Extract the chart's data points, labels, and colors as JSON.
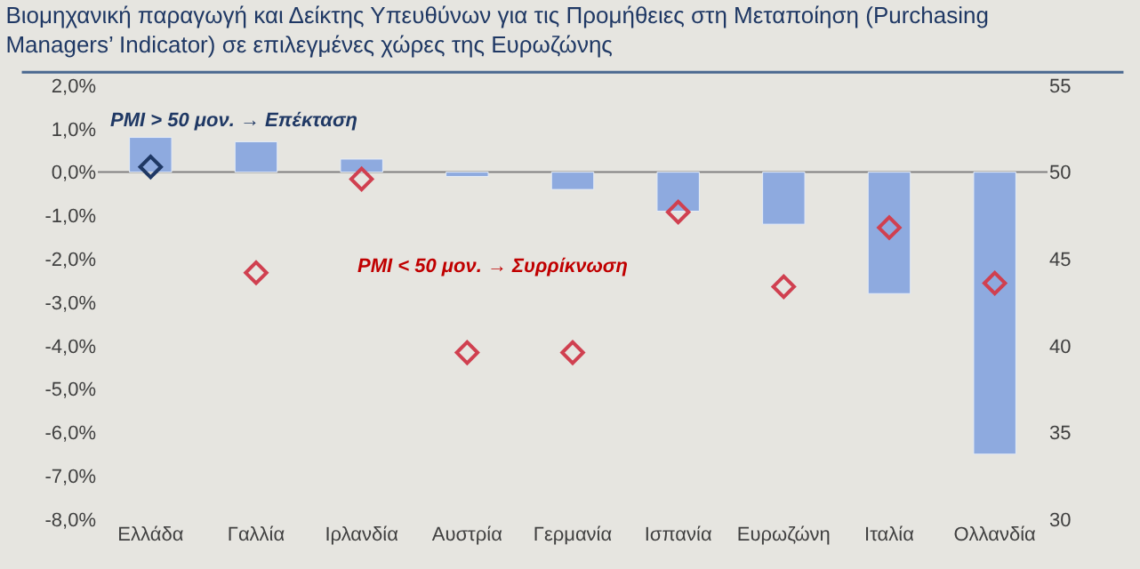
{
  "chart_data": {
    "type": "bar",
    "title": "Βιομηχανική παραγωγή και Δείκτης Υπευθύνων για τις Προμήθειες στη Μεταποίηση (Purchasing Managers’ Indicator) σε επιλεγμένες χώρες της Ευρωζώνης",
    "categories": [
      "Ελλάδα",
      "Γαλλία",
      "Ιρλανδία",
      "Αυστρία",
      "Γερμανία",
      "Ισπανία",
      "Ευρωζώνη",
      "Ιταλία",
      "Ολλανδία"
    ],
    "series": [
      {
        "color": "#8eaadf",
        "values": [
          0.8,
          0.7,
          0.3,
          -0.1,
          -0.4,
          -0.9,
          -1.2,
          -2.8,
          -6.5
        ]
      },
      {
        "type": "scatter",
        "axis": "y2",
        "marker": "diamond",
        "colors": [
          "#1f3864",
          "#d04050",
          "#d04050",
          "#d04050",
          "#d04050",
          "#d04050",
          "#d04050",
          "#d04050",
          "#d04050"
        ],
        "values": [
          50.3,
          44.2,
          49.6,
          39.6,
          39.6,
          47.7,
          43.4,
          46.8,
          43.6
        ]
      }
    ],
    "ylim": [
      -8,
      2
    ],
    "yticks": [
      {
        "value": -8,
        "label": "-8,0%"
      },
      {
        "value": -7,
        "label": "-7,0%"
      },
      {
        "value": -6,
        "label": "-6,0%"
      },
      {
        "value": -5,
        "label": "-5,0%"
      },
      {
        "value": -4,
        "label": "-4,0%"
      },
      {
        "value": -3,
        "label": "-3,0%"
      },
      {
        "value": -2,
        "label": "-2,0%"
      },
      {
        "value": -1,
        "label": "-1,0%"
      },
      {
        "value": 0,
        "label": "0,0%"
      },
      {
        "value": 1,
        "label": "1,0%"
      },
      {
        "value": 2,
        "label": "2,0%"
      }
    ],
    "y2lim": [
      30,
      55
    ],
    "y2ticks": [
      30,
      35,
      40,
      45,
      50,
      55
    ],
    "annotations": [
      "PMI > 50 μον. → Επέκταση",
      "PMI < 50 μον. → Συρρίκνωση"
    ],
    "ref_lines": [
      {
        "axis": "y",
        "value": 0,
        "color": "#808080"
      }
    ],
    "grid": false
  }
}
